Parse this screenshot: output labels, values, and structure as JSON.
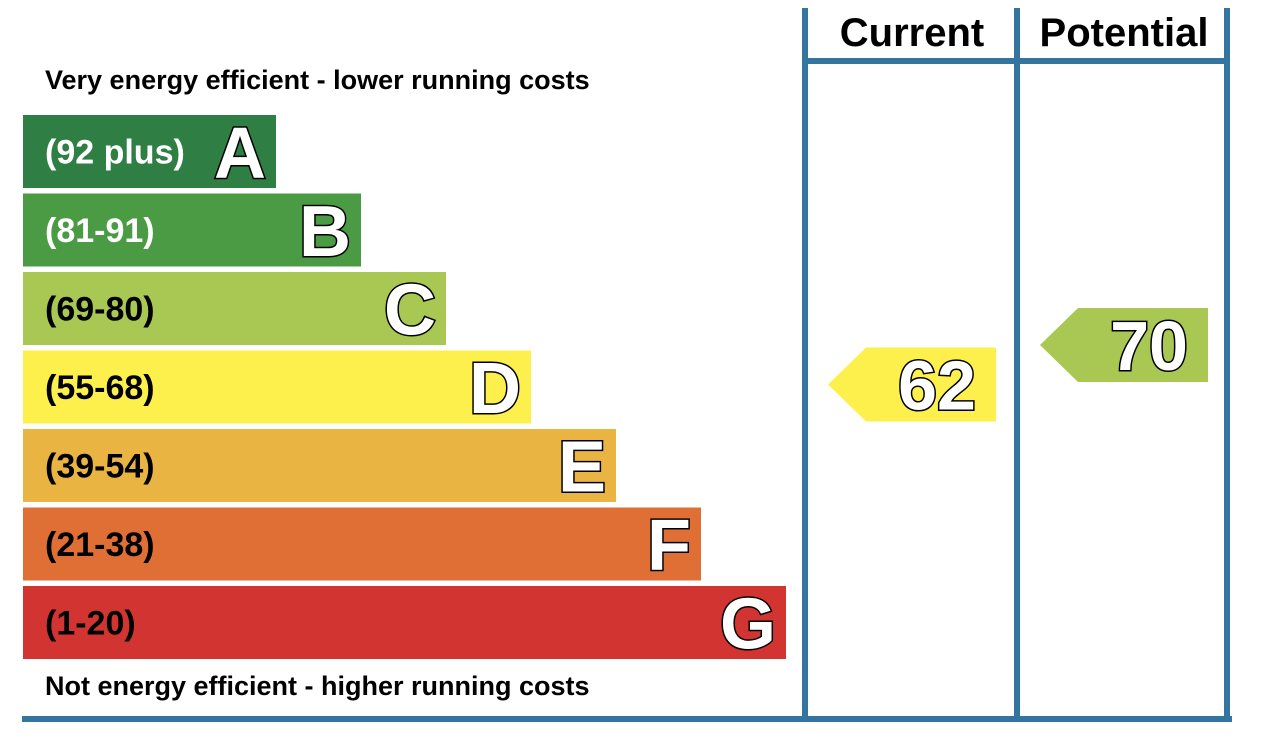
{
  "chart_data": {
    "type": "bar",
    "top_caption": "Very energy efficient - lower running costs",
    "bottom_caption": "Not energy efficient - higher running costs",
    "columns": {
      "current": "Current",
      "potential": "Potential"
    },
    "bands": [
      {
        "letter": "A",
        "range": "(92 plus)",
        "min": 92,
        "max": 100,
        "color": "#2f7f45",
        "text_color": "#ffffff"
      },
      {
        "letter": "B",
        "range": "(81-91)",
        "min": 81,
        "max": 91,
        "color": "#4a9b44",
        "text_color": "#ffffff"
      },
      {
        "letter": "C",
        "range": "(69-80)",
        "min": 69,
        "max": 80,
        "color": "#a9c853",
        "text_color": "#000000"
      },
      {
        "letter": "D",
        "range": "(55-68)",
        "min": 55,
        "max": 68,
        "color": "#fef04c",
        "text_color": "#000000"
      },
      {
        "letter": "E",
        "range": "(39-54)",
        "min": 39,
        "max": 54,
        "color": "#eab443",
        "text_color": "#000000"
      },
      {
        "letter": "F",
        "range": "(21-38)",
        "min": 21,
        "max": 38,
        "color": "#e06f36",
        "text_color": "#000000"
      },
      {
        "letter": "G",
        "range": "(1-20)",
        "min": 1,
        "max": 20,
        "color": "#d23531",
        "text_color": "#000000"
      }
    ],
    "ratings": {
      "current": {
        "value": 62,
        "band": "D"
      },
      "potential": {
        "value": 70,
        "band": "C"
      }
    },
    "frame_color": "#3475a0"
  }
}
